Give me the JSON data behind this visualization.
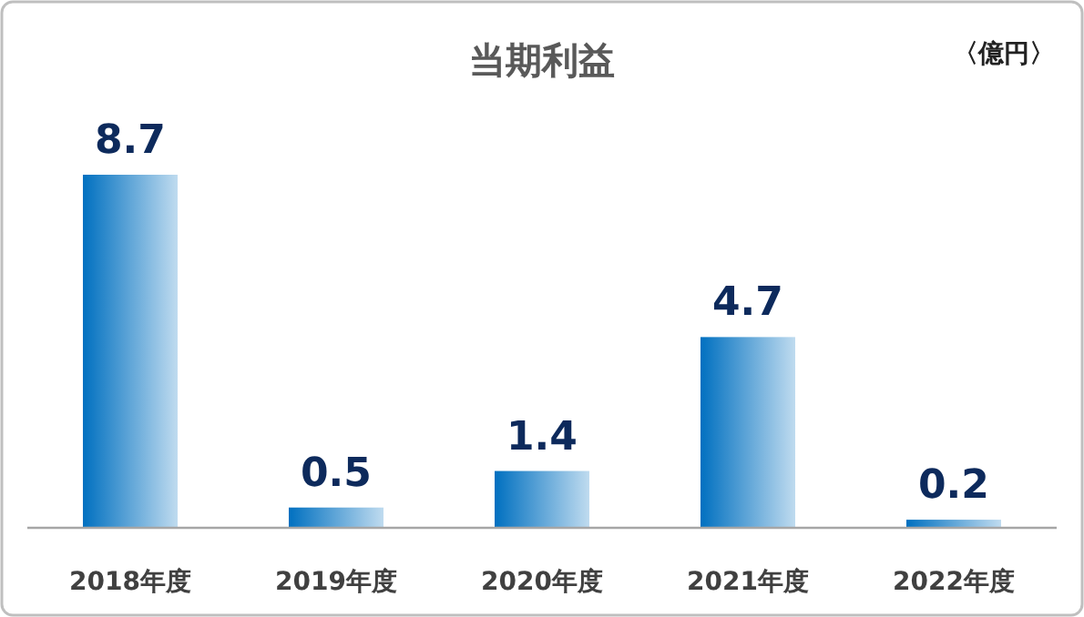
{
  "chart_data": {
    "type": "bar",
    "title": "当期利益",
    "annotations": [
      "〈億円〉"
    ],
    "categories": [
      "2018年度",
      "2019年度",
      "2020年度",
      "2021年度",
      "2022年度"
    ],
    "values": [
      8.7,
      0.5,
      1.4,
      4.7,
      0.2
    ],
    "color": "#0070c0",
    "data_labels": true
  }
}
